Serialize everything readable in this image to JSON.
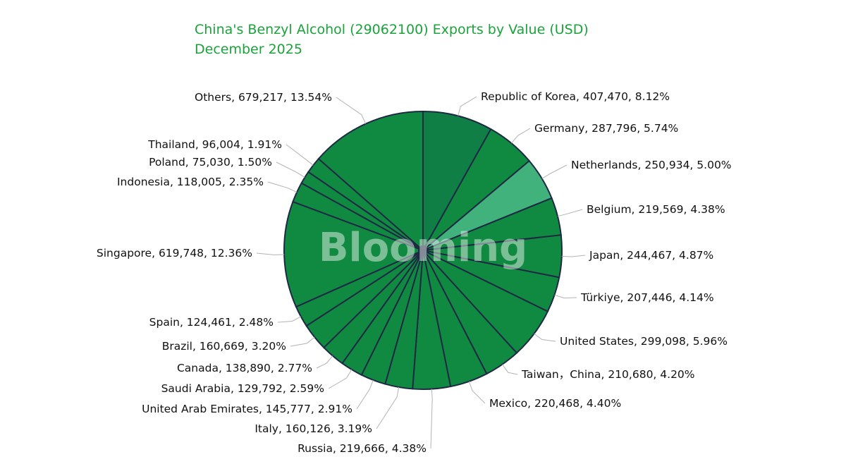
{
  "header": {
    "title": "China's Benzyl Alcohol (29062100) Exports by Value (USD)",
    "subtitle": "December 2025"
  },
  "watermark": "Blooming",
  "colors": {
    "title": "#1aa33a",
    "slice_default": "#118a41",
    "slice_alt": "#0f7f45",
    "slice_highlight": "#41b27c",
    "slice_border": "#1e2a44",
    "leader_line": "#b3b3b3"
  },
  "chart_data": {
    "type": "pie",
    "title": "China's Benzyl Alcohol (29062100) Exports by Value (USD)",
    "subtitle": "December 2025",
    "start_angle_deg": 0,
    "direction": "clockwise",
    "slices": [
      {
        "label": "Republic of Korea",
        "value": 407470,
        "percent": "8.12%",
        "display": "Republic of Korea, 407,470, 8.12%",
        "color": "#0f7f45"
      },
      {
        "label": "Germany",
        "value": 287796,
        "percent": "5.74%",
        "display": "Germany, 287,796, 5.74%",
        "color": "#118a41"
      },
      {
        "label": "Netherlands",
        "value": 250934,
        "percent": "5.00%",
        "display": "Netherlands, 250,934, 5.00%",
        "color": "#41b27c"
      },
      {
        "label": "Belgium",
        "value": 219569,
        "percent": "4.38%",
        "display": "Belgium, 219,569, 4.38%",
        "color": "#118a41"
      },
      {
        "label": "Japan",
        "value": 244467,
        "percent": "4.87%",
        "display": "Japan, 244,467, 4.87%",
        "color": "#118a41"
      },
      {
        "label": "Türkiye",
        "value": 207446,
        "percent": "4.14%",
        "display": "Türkiye, 207,446, 4.14%",
        "color": "#118a41"
      },
      {
        "label": "United States",
        "value": 299098,
        "percent": "5.96%",
        "display": "United States, 299,098, 5.96%",
        "color": "#118a41"
      },
      {
        "label": "Taiwan，China",
        "value": 210680,
        "percent": "4.20%",
        "display": "Taiwan，China, 210,680, 4.20%",
        "color": "#118a41"
      },
      {
        "label": "Mexico",
        "value": 220468,
        "percent": "4.40%",
        "display": "Mexico, 220,468, 4.40%",
        "color": "#118a41"
      },
      {
        "label": "Russia",
        "value": 219666,
        "percent": "4.38%",
        "display": "Russia, 219,666, 4.38%",
        "color": "#118a41"
      },
      {
        "label": "Italy",
        "value": 160126,
        "percent": "3.19%",
        "display": "Italy, 160,126, 3.19%",
        "color": "#118a41"
      },
      {
        "label": "United Arab Emirates",
        "value": 145777,
        "percent": "2.91%",
        "display": "United Arab Emirates, 145,777, 2.91%",
        "color": "#118a41"
      },
      {
        "label": "Saudi Arabia",
        "value": 129792,
        "percent": "2.59%",
        "display": "Saudi Arabia, 129,792, 2.59%",
        "color": "#118a41"
      },
      {
        "label": "Canada",
        "value": 138890,
        "percent": "2.77%",
        "display": "Canada, 138,890, 2.77%",
        "color": "#118a41"
      },
      {
        "label": "Brazil",
        "value": 160669,
        "percent": "3.20%",
        "display": "Brazil, 160,669, 3.20%",
        "color": "#118a41"
      },
      {
        "label": "Spain",
        "value": 124461,
        "percent": "2.48%",
        "display": "Spain, 124,461, 2.48%",
        "color": "#118a41"
      },
      {
        "label": "Singapore",
        "value": 619748,
        "percent": "12.36%",
        "display": "Singapore, 619,748, 12.36%",
        "color": "#118a41"
      },
      {
        "label": "Indonesia",
        "value": 118005,
        "percent": "2.35%",
        "display": "Indonesia, 118,005, 2.35%",
        "color": "#118a41"
      },
      {
        "label": "Poland",
        "value": 75030,
        "percent": "1.50%",
        "display": "Poland, 75,030, 1.50%",
        "color": "#118a41"
      },
      {
        "label": "Thailand",
        "value": 96004,
        "percent": "1.91%",
        "display": "Thailand, 96,004, 1.91%",
        "color": "#118a41"
      },
      {
        "label": "Others",
        "value": 679217,
        "percent": "13.54%",
        "display": "Others, 679,217, 13.54%",
        "color": "#118a41"
      }
    ]
  }
}
